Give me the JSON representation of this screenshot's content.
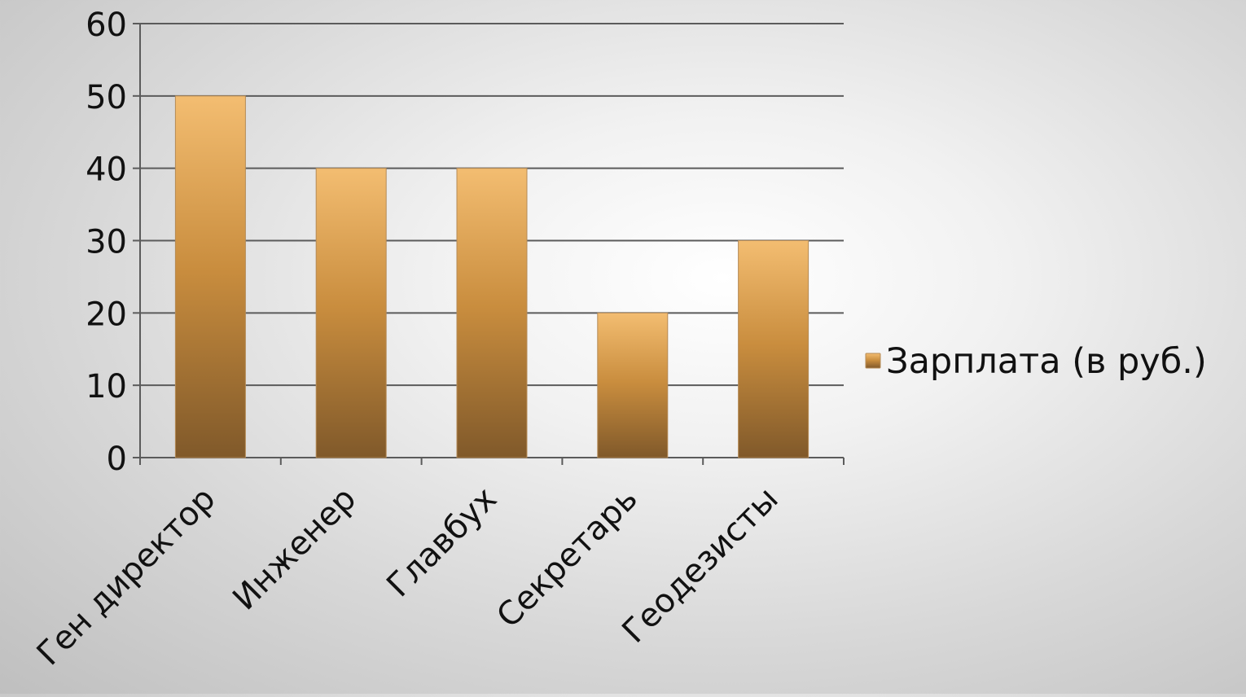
{
  "chart_data": {
    "type": "bar",
    "categories": [
      "Ген директор",
      "Инженер",
      "Главбух",
      "Секретарь",
      "Геодезисты"
    ],
    "series": [
      {
        "name": "Зарплата (в руб.)",
        "values": [
          50,
          40,
          40,
          20,
          30
        ]
      }
    ],
    "yticks": [
      "0",
      "10",
      "20",
      "30",
      "40",
      "50",
      "60"
    ],
    "ylim": [
      0,
      60
    ],
    "grid": true,
    "legend_position": "right",
    "colors": {
      "bar_top": "#f3bd71",
      "bar_mid": "#c98d3e",
      "bar_bottom": "#80592a",
      "bar_edge": "#b58b57",
      "grid": "#5b5b5b",
      "axis": "#5b5b5b"
    }
  }
}
